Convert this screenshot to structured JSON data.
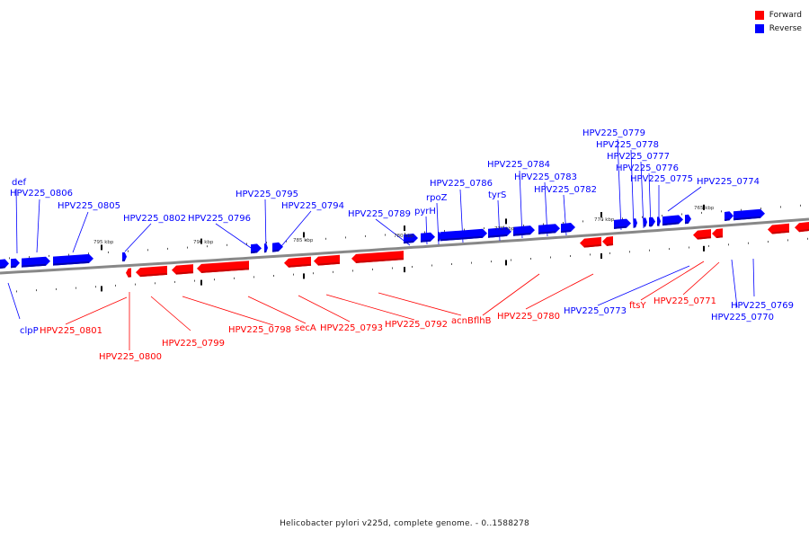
{
  "caption": "Helicobacter pylori v225d, complete genome. - 0..1588278",
  "legend": [
    {
      "label": "Forward",
      "color": "#ff0000"
    },
    {
      "label": "Reverse",
      "color": "#0000ff"
    }
  ],
  "colors": {
    "forward": "#ff0000",
    "reverse": "#0000ff",
    "backbone": "#888888",
    "tick": "#000000"
  },
  "scale_ticks": [
    "795 kbp",
    "790 kbp",
    "785 kbp",
    "780 kbp",
    "775 kbp",
    "770 kbp",
    "765 kbp"
  ],
  "gene_labels_reverse": [
    "def",
    "HPV225_0806",
    "HPV225_0805",
    "HPV225_0802",
    "HPV225_0796",
    "HPV225_0795",
    "HPV225_0794",
    "HPV225_0789",
    "pyrH",
    "rpoZ",
    "HPV225_0786",
    "tyrS",
    "HPV225_0784",
    "HPV225_0783",
    "HPV225_0782",
    "HPV225_0779",
    "HPV225_0778",
    "HPV225_0777",
    "HPV225_0776",
    "HPV225_0775",
    "HPV225_0774",
    "clpP",
    "HPV225_0773",
    "HPV225_0769",
    "HPV225_0770"
  ],
  "gene_labels_forward": [
    "HPV225_0801",
    "HPV225_0800",
    "HPV225_0799",
    "HPV225_0798",
    "secA",
    "HPV225_0793",
    "HPV225_0792",
    "acnB",
    "flhB",
    "HPV225_0780",
    "ftsY",
    "HPV225_0771"
  ]
}
